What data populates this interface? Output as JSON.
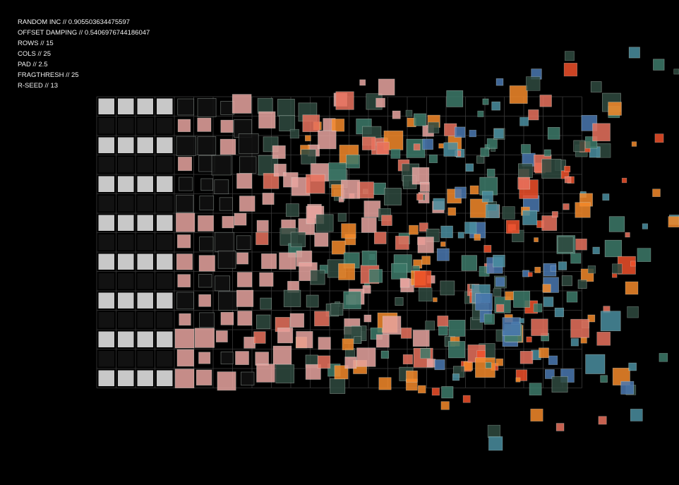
{
  "params": [
    "RANDOM INC // 0.905503634475597",
    "OFFSET DAMPING // 0.5406976744186047",
    "ROWS // 15",
    "COLS // 25",
    "PAD // 2.5",
    "FRAGTHRESH // 25",
    "R-SEED // 13"
  ],
  "sketch": {
    "random_inc": 0.905503634475597,
    "offset_damping": 0.5406976744186047,
    "rows": 15,
    "cols": 25,
    "pad": 2.5,
    "fragthresh": 25,
    "seed": 13,
    "background": "#000000",
    "grid_line_color": "#3a3a3a",
    "palette": {
      "light": "#c8c8c8",
      "dark": "#121212",
      "pink": "#e8a4a0",
      "dark_green": "#2f4a40",
      "salmon": "#e9725e",
      "teal_green": "#3d7a6a",
      "orange": "#f58a2a",
      "red_orange": "#f0502a",
      "teal": "#4a8ea0",
      "blue": "#4a78b0",
      "stroke": "#d8e4dc"
    }
  }
}
